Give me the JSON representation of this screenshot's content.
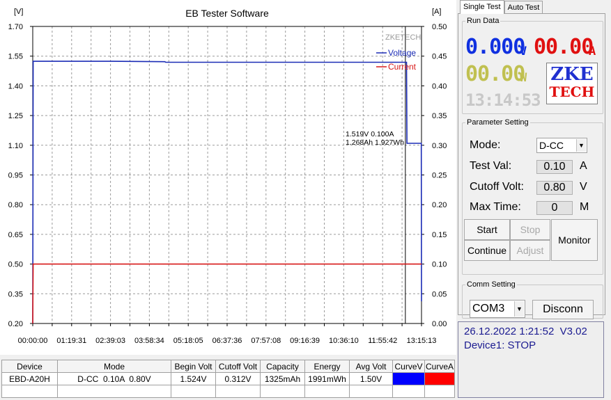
{
  "chart": {
    "title": "EB Tester Software",
    "left_unit": "[V]",
    "right_unit": "[A]",
    "watermark": "ZKETECH",
    "legend": [
      {
        "name": "Voltage",
        "color": "#1a2bb5"
      },
      {
        "name": "Current",
        "color": "#d81818"
      }
    ],
    "cursor_readout": {
      "line1": "1.519V   0.100A",
      "line2": "1.268Ah 1.927Wh"
    }
  },
  "chart_data": {
    "type": "line",
    "title": "EB Tester Software",
    "x_tick_labels": [
      "00:00:00",
      "01:19:31",
      "02:39:03",
      "03:58:34",
      "05:18:05",
      "06:37:36",
      "07:57:08",
      "09:16:39",
      "10:36:10",
      "11:55:42",
      "13:15:13"
    ],
    "y_left": {
      "label": "[V]",
      "min": 0.2,
      "max": 1.7,
      "ticks": [
        "0.20",
        "0.35",
        "0.50",
        "0.65",
        "0.80",
        "0.95",
        "1.10",
        "1.25",
        "1.40",
        "1.55",
        "1.70"
      ]
    },
    "y_right": {
      "label": "[A]",
      "min": 0.0,
      "max": 0.5,
      "ticks": [
        "0.00",
        "0.05",
        "0.10",
        "0.15",
        "0.20",
        "0.25",
        "0.30",
        "0.35",
        "0.40",
        "0.45",
        "0.50"
      ]
    },
    "grid": true,
    "legend_position": "top-right",
    "series": [
      {
        "name": "Voltage",
        "axis": "left",
        "color": "#1a2bb5",
        "x_fraction": [
          0,
          0.001,
          0.2,
          0.34,
          0.342,
          0.5,
          0.7,
          0.95,
          0.9615,
          0.9625,
          0.9995,
          1.0
        ],
        "values": [
          0.2,
          1.524,
          1.524,
          1.522,
          1.519,
          1.519,
          1.519,
          1.519,
          1.519,
          1.11,
          1.11,
          0.312
        ]
      },
      {
        "name": "Current",
        "axis": "right",
        "color": "#d81818",
        "x_fraction": [
          0,
          0.001,
          1.0
        ],
        "values": [
          0.0,
          0.1,
          0.1
        ]
      }
    ]
  },
  "tabs": [
    "Single Test",
    "Auto Test"
  ],
  "run_data": {
    "legend": "Run Data",
    "voltage": "0.000",
    "voltage_unit": "V",
    "current": "00.00",
    "current_unit": "A",
    "power": "00.00",
    "power_unit": "W",
    "time": "13:14:53",
    "logo_top": "ZKE",
    "logo_bottom": "TECH"
  },
  "parameter": {
    "legend": "Parameter Setting",
    "mode_label": "Mode:",
    "mode_value": "D-CC",
    "test_val_label": "Test Val:",
    "test_val": "0.10",
    "test_val_unit": "A",
    "cutoff_label": "Cutoff Volt:",
    "cutoff_val": "0.80",
    "cutoff_unit": "V",
    "max_time_label": "Max Time:",
    "max_time_val": "0",
    "max_time_unit": "M"
  },
  "buttons": {
    "start": "Start",
    "stop": "Stop",
    "continue": "Continue",
    "adjust": "Adjust",
    "monitor": "Monitor"
  },
  "comm": {
    "legend": "Comm Setting",
    "port": "COM3",
    "disconn": "Disconn"
  },
  "status": {
    "datetime": "26.12.2022 1:21:52",
    "version": "V3.02",
    "device_state": "Device1: STOP"
  },
  "table": {
    "headers": [
      "Device",
      "Mode",
      "Begin Volt",
      "Cutoff Volt",
      "Capacity",
      "Energy",
      "Avg Volt",
      "CurveV",
      "CurveA"
    ],
    "row": [
      "EBD-A20H",
      "D-CC  0.10A  0.80V",
      "1.524V",
      "0.312V",
      "1325mAh",
      "1991mWh",
      "1.50V"
    ],
    "curve_colors": [
      "#0000ff",
      "#ff0000"
    ]
  }
}
